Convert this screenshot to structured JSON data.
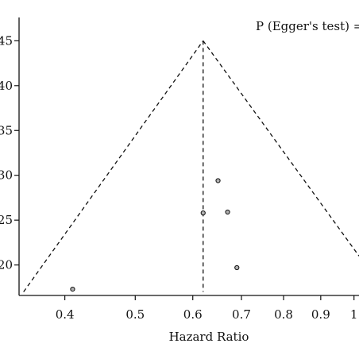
{
  "chart_data": {
    "type": "scatter",
    "subtype": "funnel",
    "xscale": "log",
    "xlabel": "Hazard Ratio",
    "annotation": "P (Egger's test) =",
    "xlim": [
      0.346,
      1.016
    ],
    "x_ticks": [
      0.4,
      0.5,
      0.6,
      0.7,
      0.8,
      0.9,
      1.0
    ],
    "x_tick_labels": [
      "0.4",
      "0.5",
      "0.6",
      "0.7",
      "0.8",
      "0.9",
      "1"
    ],
    "y_tick_labels": [
      "20",
      "25",
      "30",
      "35",
      "40",
      "45"
    ],
    "y_tick_values": [
      20,
      25,
      30,
      35,
      40,
      45
    ],
    "ylim": [
      16.6,
      47.6
    ],
    "grid": false,
    "funnel": {
      "pooled_hr": 0.62,
      "apex_y": 45,
      "left_bottom": [
        0.351,
        17.0
      ],
      "right_bottom": [
        1.016,
        21.0
      ]
    },
    "points": [
      {
        "hr": 0.41,
        "y": 17.3
      },
      {
        "hr": 0.62,
        "y": 25.8
      },
      {
        "hr": 0.65,
        "y": 29.4
      },
      {
        "hr": 0.67,
        "y": 25.9
      },
      {
        "hr": 0.69,
        "y": 19.7
      }
    ]
  }
}
